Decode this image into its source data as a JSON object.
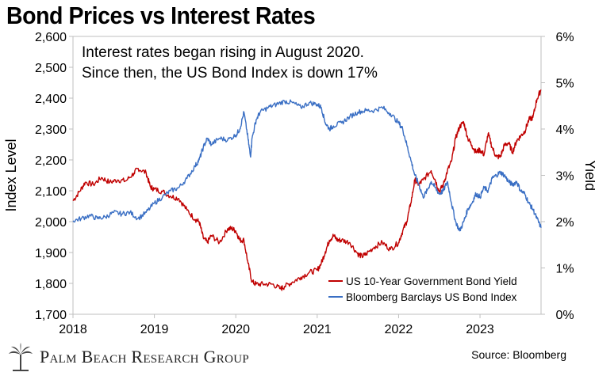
{
  "title": "Bond Prices vs Interest Rates",
  "annotation": {
    "line1": "Interest rates began rising in August 2020.",
    "line2": "Since then, the US Bond Index is down 17%"
  },
  "footer": {
    "brand": "Palm Beach Research Group",
    "source": "Source: Bloomberg"
  },
  "colors": {
    "yield": "#c00000",
    "index": "#3a6fc4",
    "grid": "#bfbfbf"
  },
  "chart_data": {
    "type": "line",
    "xlabel": "",
    "ylabel_left": "Index Level",
    "ylabel_right": "Yield",
    "x_ticks": [
      "2018",
      "2019",
      "2020",
      "2021",
      "2022",
      "2023"
    ],
    "xlim": [
      2018.0,
      2023.75
    ],
    "ylim_left": [
      1700,
      2600
    ],
    "ylim_right": [
      0,
      6
    ],
    "left_ticks": [
      "1,700",
      "1,800",
      "1,900",
      "2,000",
      "2,100",
      "2,200",
      "2,300",
      "2,400",
      "2,500",
      "2,600"
    ],
    "right_ticks": [
      "0%",
      "1%",
      "2%",
      "3%",
      "4%",
      "5%",
      "6%"
    ],
    "legend_position": "bottom-right",
    "grid": false,
    "series": [
      {
        "name": "US 10-Year Government Bond Yield",
        "axis": "right",
        "x": [
          2018.0,
          2018.08,
          2018.15,
          2018.25,
          2018.35,
          2018.45,
          2018.55,
          2018.65,
          2018.75,
          2018.8,
          2018.9,
          2018.95,
          2019.0,
          2019.1,
          2019.2,
          2019.3,
          2019.4,
          2019.5,
          2019.55,
          2019.6,
          2019.65,
          2019.7,
          2019.8,
          2019.9,
          2019.95,
          2020.0,
          2020.05,
          2020.1,
          2020.15,
          2020.2,
          2020.25,
          2020.35,
          2020.45,
          2020.55,
          2020.6,
          2020.7,
          2020.8,
          2020.9,
          2021.0,
          2021.05,
          2021.1,
          2021.15,
          2021.2,
          2021.25,
          2021.3,
          2021.4,
          2021.5,
          2021.55,
          2021.6,
          2021.7,
          2021.8,
          2021.9,
          2022.0,
          2022.05,
          2022.1,
          2022.15,
          2022.2,
          2022.25,
          2022.3,
          2022.4,
          2022.45,
          2022.5,
          2022.55,
          2022.6,
          2022.65,
          2022.7,
          2022.75,
          2022.8,
          2022.85,
          2022.9,
          2022.95,
          2023.0,
          2023.05,
          2023.1,
          2023.15,
          2023.2,
          2023.25,
          2023.3,
          2023.35,
          2023.4,
          2023.45,
          2023.5,
          2023.55,
          2023.6,
          2023.65,
          2023.7,
          2023.75
        ],
        "values": [
          2.45,
          2.65,
          2.85,
          2.8,
          2.95,
          2.85,
          2.9,
          2.88,
          3.05,
          3.15,
          3.05,
          2.75,
          2.7,
          2.65,
          2.55,
          2.5,
          2.25,
          2.05,
          2.0,
          1.65,
          1.55,
          1.7,
          1.55,
          1.85,
          1.85,
          1.8,
          1.6,
          1.6,
          1.1,
          0.7,
          0.65,
          0.65,
          0.65,
          0.55,
          0.6,
          0.7,
          0.8,
          0.9,
          0.95,
          1.1,
          1.35,
          1.6,
          1.7,
          1.6,
          1.6,
          1.55,
          1.3,
          1.25,
          1.3,
          1.45,
          1.55,
          1.4,
          1.55,
          1.8,
          2.0,
          2.4,
          2.9,
          2.8,
          2.9,
          3.1,
          2.9,
          2.65,
          2.8,
          3.1,
          3.3,
          3.8,
          4.05,
          4.15,
          3.8,
          3.65,
          3.5,
          3.55,
          3.45,
          3.9,
          3.6,
          3.4,
          3.4,
          3.65,
          3.7,
          3.5,
          3.75,
          3.85,
          3.95,
          4.2,
          4.25,
          4.65,
          4.85
        ]
      },
      {
        "name": "Bloomberg Barclays US Bond Index",
        "axis": "left",
        "x": [
          2018.0,
          2018.1,
          2018.2,
          2018.3,
          2018.4,
          2018.5,
          2018.6,
          2018.7,
          2018.8,
          2018.9,
          2019.0,
          2019.1,
          2019.2,
          2019.3,
          2019.4,
          2019.5,
          2019.55,
          2019.6,
          2019.65,
          2019.7,
          2019.8,
          2019.9,
          2020.0,
          2020.05,
          2020.1,
          2020.15,
          2020.18,
          2020.2,
          2020.25,
          2020.3,
          2020.4,
          2020.5,
          2020.6,
          2020.7,
          2020.8,
          2020.9,
          2021.0,
          2021.05,
          2021.1,
          2021.15,
          2021.2,
          2021.3,
          2021.4,
          2021.5,
          2021.6,
          2021.7,
          2021.8,
          2021.9,
          2022.0,
          2022.05,
          2022.1,
          2022.15,
          2022.2,
          2022.25,
          2022.3,
          2022.35,
          2022.4,
          2022.45,
          2022.5,
          2022.55,
          2022.6,
          2022.65,
          2022.7,
          2022.75,
          2022.8,
          2022.85,
          2022.9,
          2022.95,
          2023.0,
          2023.05,
          2023.1,
          2023.15,
          2023.2,
          2023.25,
          2023.3,
          2023.35,
          2023.4,
          2023.45,
          2023.5,
          2023.55,
          2023.6,
          2023.65,
          2023.7,
          2023.75
        ],
        "values": [
          2003,
          2010,
          2020,
          2010,
          2015,
          2030,
          2025,
          2030,
          2010,
          2030,
          2060,
          2080,
          2100,
          2110,
          2140,
          2180,
          2200,
          2240,
          2270,
          2250,
          2270,
          2265,
          2280,
          2300,
          2355,
          2270,
          2210,
          2270,
          2330,
          2355,
          2370,
          2380,
          2390,
          2385,
          2370,
          2385,
          2380,
          2370,
          2320,
          2300,
          2310,
          2320,
          2340,
          2355,
          2360,
          2360,
          2370,
          2350,
          2320,
          2300,
          2250,
          2200,
          2150,
          2120,
          2080,
          2100,
          2130,
          2110,
          2090,
          2100,
          2130,
          2060,
          2000,
          1970,
          2000,
          2040,
          2060,
          2090,
          2080,
          2110,
          2100,
          2140,
          2150,
          2160,
          2150,
          2130,
          2120,
          2130,
          2100,
          2090,
          2060,
          2040,
          2010,
          1980
        ]
      }
    ]
  }
}
